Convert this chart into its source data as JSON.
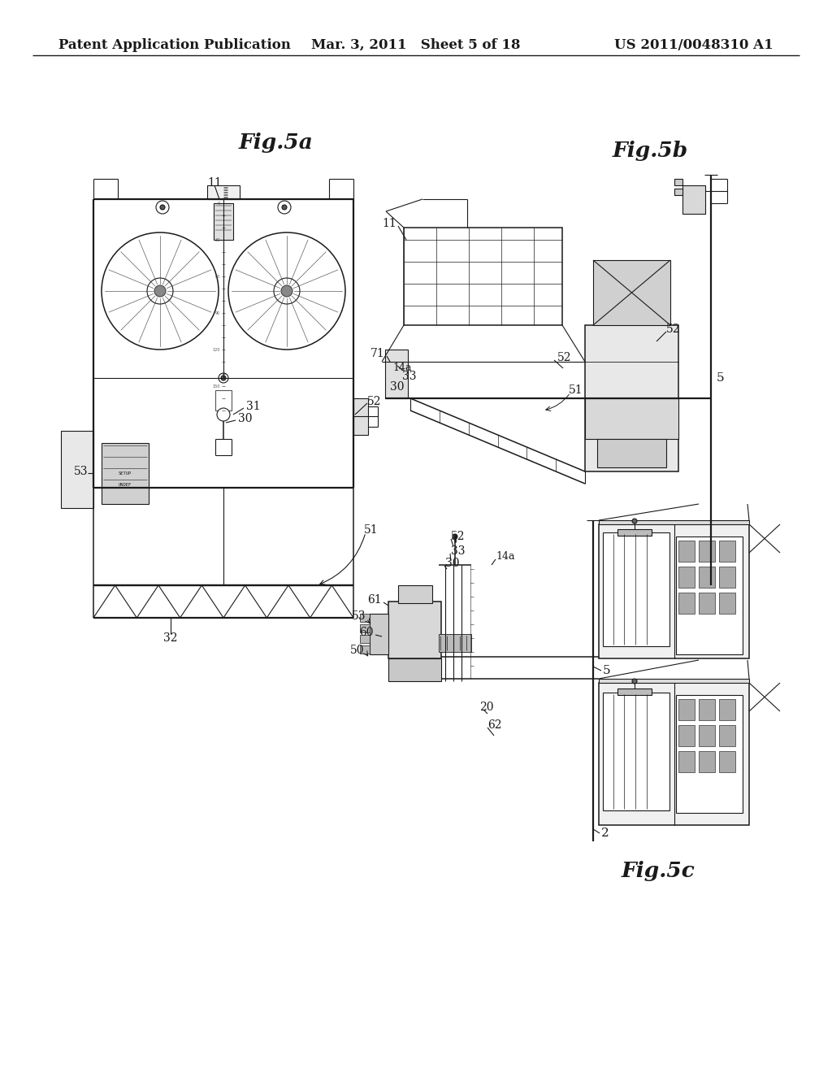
{
  "bg": "#ffffff",
  "header_left": "Patent Application Publication",
  "header_mid": "Mar. 3, 2011   Sheet 5 of 18",
  "header_right": "US 2011/0048310 A1",
  "fig5a_label": "Fig.5a",
  "fig5b_label": "Fig.5b",
  "fig5c_label": "Fig.5c",
  "lw": 0.8,
  "lw_thick": 1.6,
  "lw_med": 1.1,
  "ink": "#1a1a1a"
}
